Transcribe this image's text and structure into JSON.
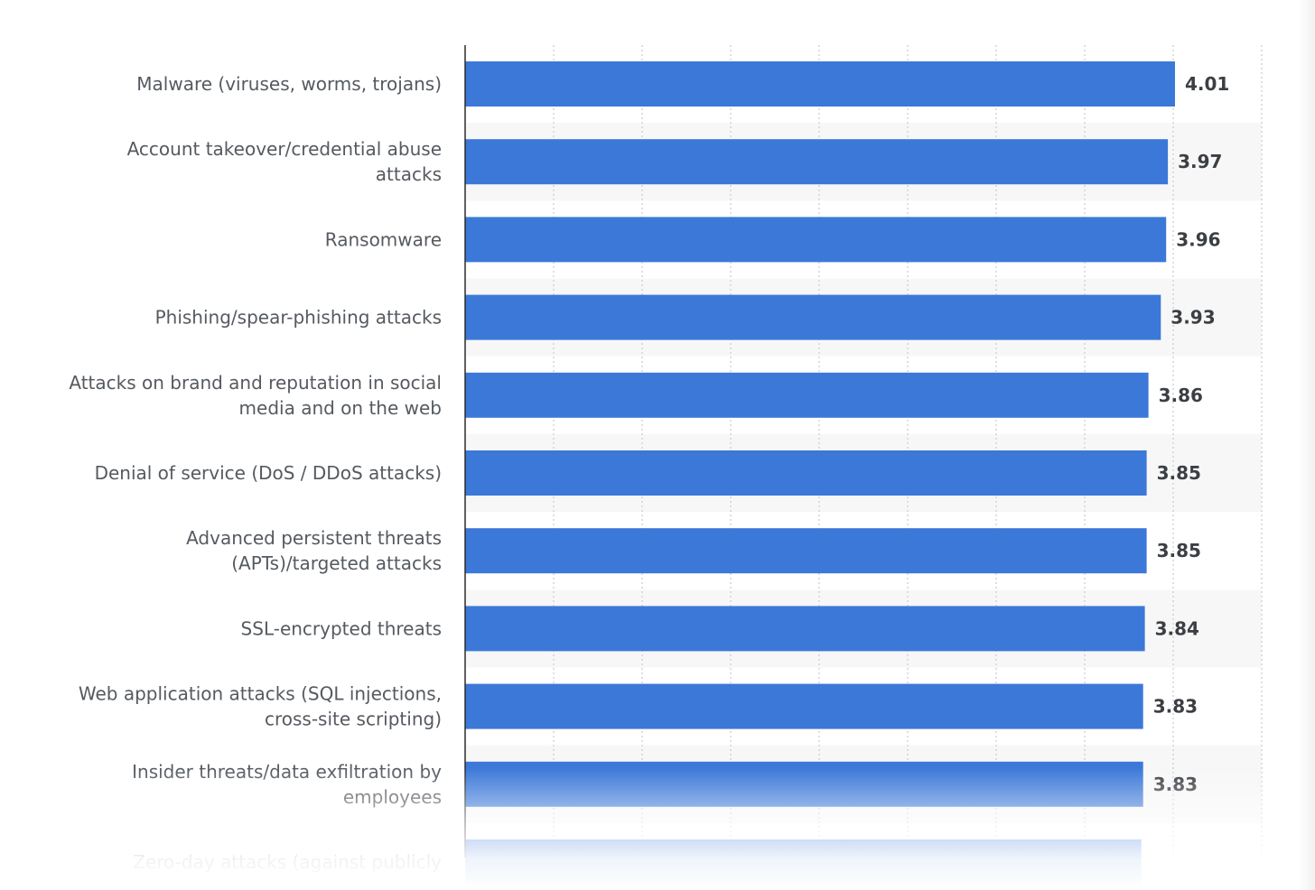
{
  "chart_data": {
    "type": "bar",
    "orientation": "horizontal",
    "categories": [
      "Malware (viruses, worms, trojans)",
      "Account takeover/credential abuse attacks",
      "Ransomware",
      "Phishing/spear-phishing attacks",
      "Attacks on brand and reputation in social media and on the web",
      "Denial of service (DoS / DDoS attacks)",
      "Advanced persistent threats (APTs)/targeted attacks",
      "SSL-encrypted threats",
      "Web application attacks (SQL injections, cross-site scripting)",
      "Insider threats/data exfiltration by employees",
      "Zero-day attacks (against publicly"
    ],
    "label_lines": [
      [
        "Malware (viruses, worms, trojans)"
      ],
      [
        "Account takeover/credential abuse",
        "attacks"
      ],
      [
        "Ransomware"
      ],
      [
        "Phishing/spear-phishing attacks"
      ],
      [
        "Attacks on brand and reputation in social",
        "media and on the web"
      ],
      [
        "Denial of service (DoS / DDoS attacks)"
      ],
      [
        "Advanced persistent threats",
        "(APTs)/targeted attacks"
      ],
      [
        "SSL-encrypted threats"
      ],
      [
        "Web application attacks (SQL injections,",
        "cross-site scripting)"
      ],
      [
        "Insider threats/data exfiltration by",
        "employees"
      ],
      [
        "Zero-day attacks (against publicly"
      ]
    ],
    "values": [
      4.01,
      3.97,
      3.96,
      3.93,
      3.86,
      3.85,
      3.85,
      3.84,
      3.83,
      3.83,
      3.82
    ],
    "value_labels": [
      "4.01",
      "3.97",
      "3.96",
      "3.93",
      "3.86",
      "3.85",
      "3.85",
      "3.84",
      "3.83",
      "3.83",
      ""
    ],
    "xlim": [
      0,
      4.5
    ],
    "xlabel": "",
    "ylabel": "",
    "grid": true,
    "colors": {
      "bar": "#3c78d8",
      "label_text": "#555a60",
      "value_text": "#3b3f44",
      "gridline": "#c8ccd0",
      "axis_line": "#2b2b2b",
      "band": "#f7f7f7"
    }
  }
}
